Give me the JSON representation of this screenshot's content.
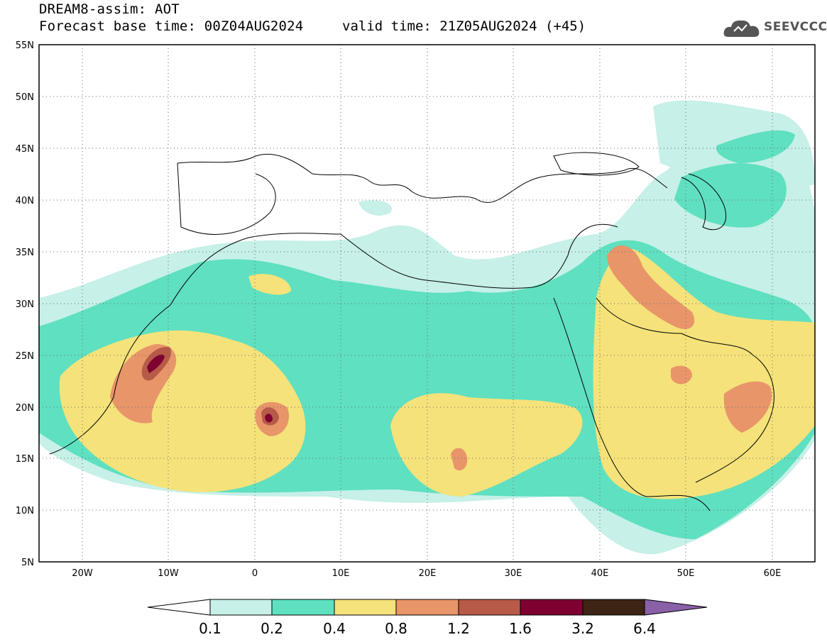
{
  "header": {
    "model_line": "DREAM8-assim: AOT",
    "base_time_line": "Forecast base time: 00Z04AUG2024",
    "valid_time_line": "valid time: 21Z05AUG2024 (+45)",
    "logo_text": "SEEVCCC"
  },
  "map": {
    "region": "North Africa, Middle East and Europe",
    "lat_range": [
      5,
      55
    ],
    "lon_range": [
      -25,
      65
    ],
    "lat_ticks": [
      "55N",
      "50N",
      "45N",
      "40N",
      "35N",
      "30N",
      "25N",
      "20N",
      "15N",
      "10N",
      "5N"
    ],
    "lon_ticks": [
      "20W",
      "10W",
      "0",
      "10E",
      "20E",
      "30E",
      "40E",
      "50E",
      "60E"
    ],
    "gridlines": "dotted"
  },
  "legend": {
    "labels": [
      "0.1",
      "0.2",
      "0.4",
      "0.8",
      "1.2",
      "1.6",
      "3.2",
      "6.4"
    ],
    "colors": [
      "#ffffff",
      "#c6f0e8",
      "#5fe0c0",
      "#f5e27a",
      "#e8956a",
      "#b85a48",
      "#7e0030",
      "#3d2414",
      "#8a60a8"
    ]
  }
}
